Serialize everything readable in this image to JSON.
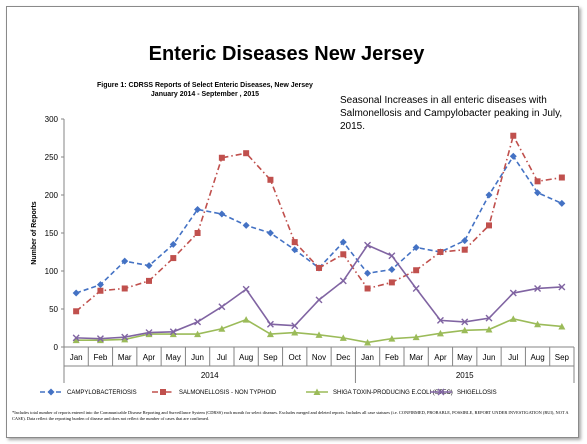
{
  "slide": {
    "title": "Enteric Diseases New Jersey",
    "figure_caption_line1": "Figure 1: CDRSS Reports of Select Enteric Diseases, New Jersey",
    "figure_caption_line2": "January 2014 - September , 2015",
    "annotation": "Seasonal Increases in  all enteric diseases  with Salmonellosis and Campylobacter  peaking  in July, 2015.",
    "footnote": "*Includes total number of reports entered into the Communicable Disease Reporting and Surveillance System (CDRSS) each month for select diseases. Excludes merged and deleted reports. Includes all case statuses (i.e. CONFIRMED, PROBABLE, POSSIBLE, REPORT UNDER INVESTIGATION (RUI), NOT A CASE). Data reflect the reporting burden of disease and does not reflect the number of cases that are confirmed."
  },
  "chart_data": {
    "type": "line",
    "title": "Figure 1: CDRSS Reports of Select Enteric Diseases, New Jersey January 2014 - September , 2015",
    "xlabel": "",
    "ylabel": "Number of Reports",
    "ylim": [
      0,
      300
    ],
    "yticks": [
      0,
      50,
      100,
      150,
      200,
      250,
      300
    ],
    "grid": false,
    "legend_position": "bottom",
    "categories": [
      "Jan",
      "Feb",
      "Mar",
      "Apr",
      "May",
      "Jun",
      "Jul",
      "Aug",
      "Sep",
      "Oct",
      "Nov",
      "Dec",
      "Jan",
      "Feb",
      "Mar",
      "Apr",
      "May",
      "Jun",
      "Jul",
      "Aug",
      "Sep"
    ],
    "year_groups": [
      {
        "label": "2014",
        "count": 12
      },
      {
        "label": "2015",
        "count": 9
      }
    ],
    "series": [
      {
        "name": "CAMPYLOBACTERIOSIS",
        "color": "#4472C4",
        "line_style": "dashed",
        "marker": "diamond",
        "values": [
          71,
          82,
          113,
          107,
          135,
          181,
          175,
          160,
          150,
          128,
          104,
          138,
          97,
          102,
          131,
          125,
          140,
          200,
          251,
          203,
          189
        ]
      },
      {
        "name": "SALMONELLOSIS - NON TYPHOID",
        "color": "#C0504D",
        "line_style": "dashdot",
        "marker": "square",
        "values": [
          47,
          74,
          77,
          87,
          117,
          150,
          249,
          255,
          220,
          138,
          104,
          122,
          77,
          85,
          101,
          125,
          128,
          160,
          278,
          218,
          223
        ]
      },
      {
        "name": "SHIGA TOXIN-PRODUCING E.COLI (STEC)",
        "color": "#9BBB59",
        "line_style": "solid",
        "marker": "triangle",
        "values": [
          9,
          9,
          10,
          17,
          17,
          17,
          24,
          36,
          17,
          19,
          16,
          12,
          6,
          11,
          13,
          18,
          22,
          23,
          37,
          30,
          27
        ]
      },
      {
        "name": "SHIGELLOSIS",
        "color": "#8064A2",
        "line_style": "solid",
        "marker": "x",
        "values": [
          12,
          11,
          13,
          19,
          20,
          33,
          53,
          76,
          30,
          28,
          62,
          87,
          134,
          120,
          77,
          35,
          33,
          38,
          71,
          77,
          79
        ]
      }
    ]
  }
}
